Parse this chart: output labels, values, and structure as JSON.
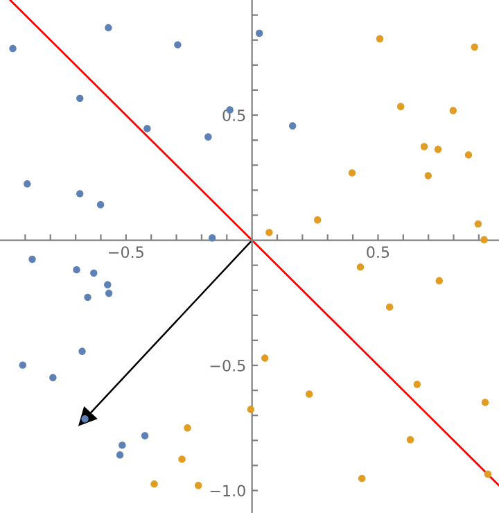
{
  "chart_data": {
    "type": "scatter",
    "xlim": [
      -1.0,
      0.98
    ],
    "ylim": [
      -1.09,
      0.96
    ],
    "xticks": [
      {
        "value": -0.9,
        "label": null
      },
      {
        "value": -0.8,
        "label": null
      },
      {
        "value": -0.7,
        "label": null
      },
      {
        "value": -0.6,
        "label": null
      },
      {
        "value": -0.5,
        "label": "−0.5"
      },
      {
        "value": -0.4,
        "label": null
      },
      {
        "value": -0.3,
        "label": null
      },
      {
        "value": -0.2,
        "label": null
      },
      {
        "value": -0.1,
        "label": null
      },
      {
        "value": 0.1,
        "label": null
      },
      {
        "value": 0.2,
        "label": null
      },
      {
        "value": 0.3,
        "label": null
      },
      {
        "value": 0.4,
        "label": null
      },
      {
        "value": 0.5,
        "label": "0.5"
      },
      {
        "value": 0.6,
        "label": null
      },
      {
        "value": 0.7,
        "label": null
      },
      {
        "value": 0.8,
        "label": null
      },
      {
        "value": 0.9,
        "label": null
      }
    ],
    "yticks": [
      {
        "value": -1.0,
        "label": "−1.0"
      },
      {
        "value": -0.9,
        "label": null
      },
      {
        "value": -0.8,
        "label": null
      },
      {
        "value": -0.7,
        "label": null
      },
      {
        "value": -0.6,
        "label": null
      },
      {
        "value": -0.5,
        "label": "−0.5"
      },
      {
        "value": -0.4,
        "label": null
      },
      {
        "value": -0.3,
        "label": null
      },
      {
        "value": -0.2,
        "label": null
      },
      {
        "value": -0.1,
        "label": null
      },
      {
        "value": 0.1,
        "label": null
      },
      {
        "value": 0.2,
        "label": null
      },
      {
        "value": 0.3,
        "label": null
      },
      {
        "value": 0.4,
        "label": null
      },
      {
        "value": 0.5,
        "label": "0.5"
      },
      {
        "value": 0.6,
        "label": null
      },
      {
        "value": 0.7,
        "label": null
      },
      {
        "value": 0.8,
        "label": null
      },
      {
        "value": 0.9,
        "label": null
      }
    ],
    "grid": false,
    "marker": "circle",
    "series": [
      {
        "color": "#5e81b5",
        "x": [
          -0.949,
          -0.57,
          -0.295,
          -0.683,
          -0.416,
          -0.174,
          -0.088,
          -0.892,
          -0.683,
          -0.601,
          -0.158,
          0.029,
          0.161,
          -0.872,
          -0.696,
          -0.628,
          -0.573,
          -0.568,
          -0.652,
          -0.674,
          -0.91,
          -0.79,
          -0.663,
          -0.425,
          -0.515,
          -0.524
        ],
        "values": [
          0.766,
          0.849,
          0.781,
          0.567,
          0.446,
          0.413,
          0.521,
          0.225,
          0.186,
          0.142,
          0.009,
          0.827,
          0.457,
          -0.076,
          -0.118,
          -0.131,
          -0.178,
          -0.212,
          -0.228,
          -0.444,
          -0.499,
          -0.549,
          -0.714,
          -0.781,
          -0.819,
          -0.858
        ]
      },
      {
        "color": "#e19c24",
        "x": [
          0.068,
          0.26,
          0.397,
          0.507,
          0.59,
          0.683,
          0.738,
          0.699,
          0.798,
          0.859,
          0.883,
          0.897,
          0.921,
          0.43,
          0.743,
          0.546,
          0.051,
          0.227,
          -0.005,
          0.655,
          0.925,
          0.628,
          0.436,
          0.936,
          -0.256,
          -0.278,
          -0.388,
          -0.213
        ],
        "values": [
          0.031,
          0.081,
          0.269,
          0.805,
          0.534,
          0.374,
          0.363,
          0.258,
          0.518,
          0.341,
          0.772,
          0.065,
          0.002,
          -0.107,
          -0.162,
          -0.267,
          -0.471,
          -0.615,
          -0.676,
          -0.576,
          -0.648,
          -0.797,
          -0.952,
          -0.935,
          -0.75,
          -0.875,
          -0.974,
          -0.98
        ]
      },
      {
        "type": "line",
        "color": "#ff0000",
        "marker": "none",
        "x": [
          -0.96,
          0.98
        ],
        "values": [
          0.96,
          -0.98
        ]
      },
      {
        "type": "line",
        "color": "#000000",
        "marker": "triangle",
        "x": [
          0,
          -0.663
        ],
        "values": [
          0,
          -0.714
        ]
      }
    ]
  }
}
